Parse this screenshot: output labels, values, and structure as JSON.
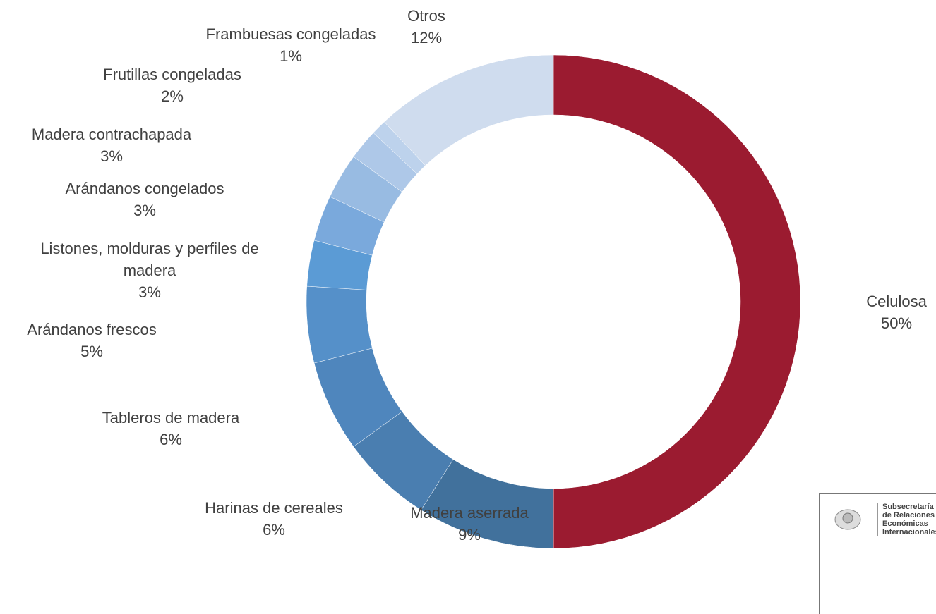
{
  "chart_data": {
    "type": "donut",
    "categories": [
      "Celulosa",
      "Madera aserrada",
      "Harinas de cereales",
      "Tableros de madera",
      "Arándanos frescos",
      "Listones, molduras y perfiles de madera",
      "Arándanos congelados",
      "Madera contrachapada",
      "Frutillas congeladas",
      "Frambuesas congeladas",
      "Otros"
    ],
    "values": [
      50,
      9,
      6,
      6,
      5,
      3,
      3,
      3,
      2,
      1,
      12
    ],
    "value_labels": [
      "50%",
      "9%",
      "6%",
      "6%",
      "5%",
      "3%",
      "3%",
      "3%",
      "2%",
      "1%",
      "12%"
    ],
    "colors": [
      "#9b1b30",
      "#41719c",
      "#4a7eb0",
      "#4f86bd",
      "#5590c9",
      "#5b9bd5",
      "#7aa9dc",
      "#98bbe2",
      "#aec8e8",
      "#bdd2ec",
      "#cfdcee"
    ]
  },
  "logo": {
    "lines": [
      "Subsecretaría",
      "de Relaciones",
      "Económicas",
      "Internacionales"
    ]
  }
}
